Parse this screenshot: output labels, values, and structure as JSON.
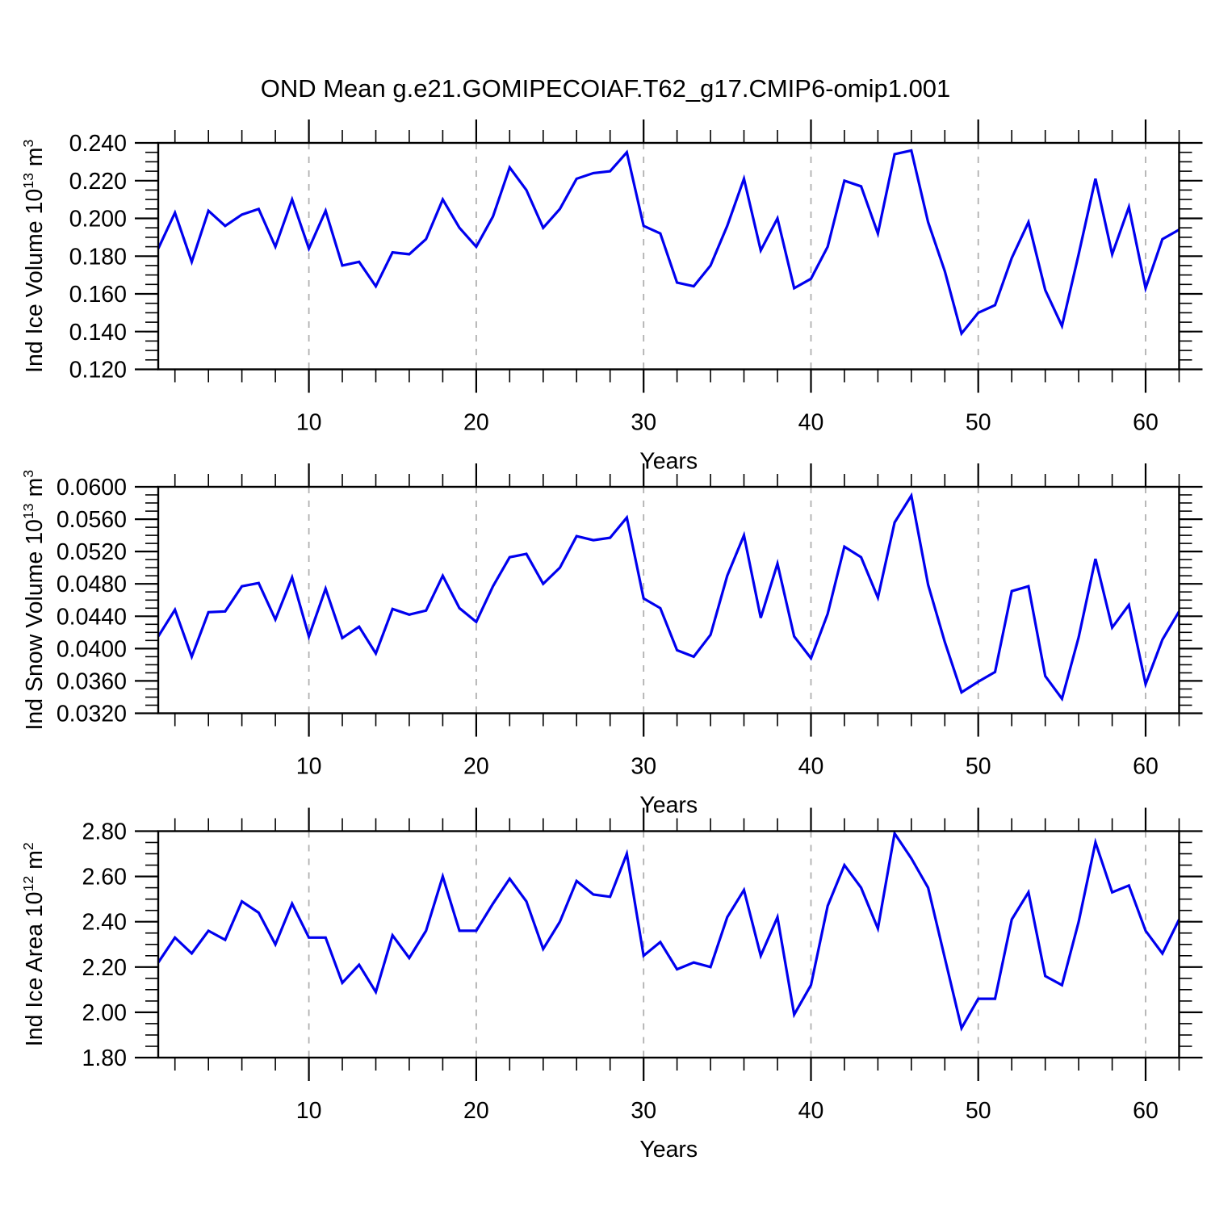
{
  "title": "OND Mean g.e21.GOMIPECOIAF.T62_g17.CMIP6-omip1.001",
  "accent_color": "#0000ee",
  "grid_color": "#b0b0b0",
  "frame_color": "#000000",
  "chart_data": [
    {
      "type": "line",
      "title": "",
      "xlabel": "Years",
      "ylabel": "Ind Ice Volume 10^13 m^3",
      "ylabel_parts": [
        {
          "t": "Ind Ice Volume 10"
        },
        {
          "t": "13",
          "sup": true
        },
        {
          "t": " m"
        },
        {
          "t": "3",
          "sup": true
        }
      ],
      "x_start": 1,
      "x_step": 1,
      "xlim": [
        1,
        62
      ],
      "ylim": [
        0.12,
        0.24
      ],
      "yticks": [
        0.12,
        0.14,
        0.16,
        0.18,
        0.2,
        0.22,
        0.24
      ],
      "yticklabels": [
        "0.120",
        "0.140",
        "0.160",
        "0.180",
        "0.200",
        "0.220",
        "0.240"
      ],
      "ytick_minor_step": 0.005,
      "xticks": [
        10,
        20,
        30,
        40,
        50,
        60
      ],
      "xticklabels": [
        "10",
        "20",
        "30",
        "40",
        "50",
        "60"
      ],
      "xtick_minor_start": 2,
      "xtick_minor_step": 2,
      "grid": "vertical-dashed-at-major-xticks",
      "legend": "none",
      "values": [
        0.184,
        0.203,
        0.177,
        0.204,
        0.196,
        0.202,
        0.205,
        0.185,
        0.21,
        0.184,
        0.204,
        0.175,
        0.177,
        0.164,
        0.182,
        0.181,
        0.189,
        0.21,
        0.195,
        0.185,
        0.201,
        0.227,
        0.215,
        0.195,
        0.205,
        0.221,
        0.224,
        0.225,
        0.235,
        0.196,
        0.192,
        0.166,
        0.164,
        0.175,
        0.196,
        0.221,
        0.183,
        0.2,
        0.163,
        0.168,
        0.185,
        0.22,
        0.217,
        0.192,
        0.234,
        0.236,
        0.198,
        0.172,
        0.139,
        0.15,
        0.154,
        0.179,
        0.198,
        0.162,
        0.143,
        0.181,
        0.221,
        0.181,
        0.206,
        0.163,
        0.189,
        0.194
      ]
    },
    {
      "type": "line",
      "title": "",
      "xlabel": "Years",
      "ylabel": "Ind Snow Volume 10^13 m^3",
      "ylabel_parts": [
        {
          "t": "Ind Snow Volume 10"
        },
        {
          "t": "13",
          "sup": true
        },
        {
          "t": " m"
        },
        {
          "t": "3",
          "sup": true
        }
      ],
      "x_start": 1,
      "x_step": 1,
      "xlim": [
        1,
        62
      ],
      "ylim": [
        0.032,
        0.06
      ],
      "yticks": [
        0.032,
        0.036,
        0.04,
        0.044,
        0.048,
        0.052,
        0.056,
        0.06
      ],
      "yticklabels": [
        "0.0320",
        "0.0360",
        "0.0400",
        "0.0440",
        "0.0480",
        "0.0520",
        "0.0560",
        "0.0600"
      ],
      "ytick_minor_step": 0.001,
      "xticks": [
        10,
        20,
        30,
        40,
        50,
        60
      ],
      "xticklabels": [
        "10",
        "20",
        "30",
        "40",
        "50",
        "60"
      ],
      "xtick_minor_start": 2,
      "xtick_minor_step": 2,
      "grid": "vertical-dashed-at-major-xticks",
      "legend": "none",
      "values": [
        0.0415,
        0.0448,
        0.039,
        0.0445,
        0.0446,
        0.0477,
        0.0481,
        0.0436,
        0.0488,
        0.0415,
        0.0474,
        0.0413,
        0.0427,
        0.0394,
        0.0449,
        0.0442,
        0.0447,
        0.049,
        0.045,
        0.0433,
        0.0477,
        0.0513,
        0.0517,
        0.048,
        0.05,
        0.0539,
        0.0534,
        0.0537,
        0.0562,
        0.0462,
        0.045,
        0.0398,
        0.039,
        0.0417,
        0.049,
        0.054,
        0.0438,
        0.0505,
        0.0415,
        0.0388,
        0.0443,
        0.0526,
        0.0513,
        0.0463,
        0.0556,
        0.0589,
        0.0479,
        0.0408,
        0.0346,
        0.0359,
        0.0371,
        0.0471,
        0.0477,
        0.0366,
        0.0338,
        0.0414,
        0.0511,
        0.0426,
        0.0454,
        0.0356,
        0.0411,
        0.0446
      ]
    },
    {
      "type": "line",
      "title": "",
      "xlabel": "Years",
      "ylabel": "Ind Ice Area 10^12 m^2",
      "ylabel_parts": [
        {
          "t": "Ind Ice Area 10"
        },
        {
          "t": "12",
          "sup": true
        },
        {
          "t": " m"
        },
        {
          "t": "2",
          "sup": true
        }
      ],
      "x_start": 1,
      "x_step": 1,
      "xlim": [
        1,
        62
      ],
      "ylim": [
        1.8,
        2.8
      ],
      "yticks": [
        1.8,
        2.0,
        2.2,
        2.4,
        2.6,
        2.8
      ],
      "yticklabels": [
        "1.80",
        "2.00",
        "2.20",
        "2.40",
        "2.60",
        "2.80"
      ],
      "ytick_minor_step": 0.05,
      "xticks": [
        10,
        20,
        30,
        40,
        50,
        60
      ],
      "xticklabels": [
        "10",
        "20",
        "30",
        "40",
        "50",
        "60"
      ],
      "xtick_minor_start": 2,
      "xtick_minor_step": 2,
      "grid": "vertical-dashed-at-major-xticks",
      "legend": "none",
      "values": [
        2.22,
        2.33,
        2.26,
        2.36,
        2.32,
        2.49,
        2.44,
        2.3,
        2.48,
        2.33,
        2.33,
        2.13,
        2.21,
        2.09,
        2.34,
        2.24,
        2.36,
        2.6,
        2.36,
        2.36,
        2.48,
        2.59,
        2.49,
        2.28,
        2.4,
        2.58,
        2.52,
        2.51,
        2.7,
        2.25,
        2.31,
        2.19,
        2.22,
        2.2,
        2.42,
        2.54,
        2.25,
        2.42,
        1.99,
        2.12,
        2.47,
        2.65,
        2.55,
        2.37,
        2.79,
        2.68,
        2.55,
        2.24,
        1.93,
        2.06,
        2.06,
        2.41,
        2.53,
        2.16,
        2.12,
        2.4,
        2.75,
        2.53,
        2.56,
        2.36,
        2.26,
        2.41
      ]
    }
  ]
}
